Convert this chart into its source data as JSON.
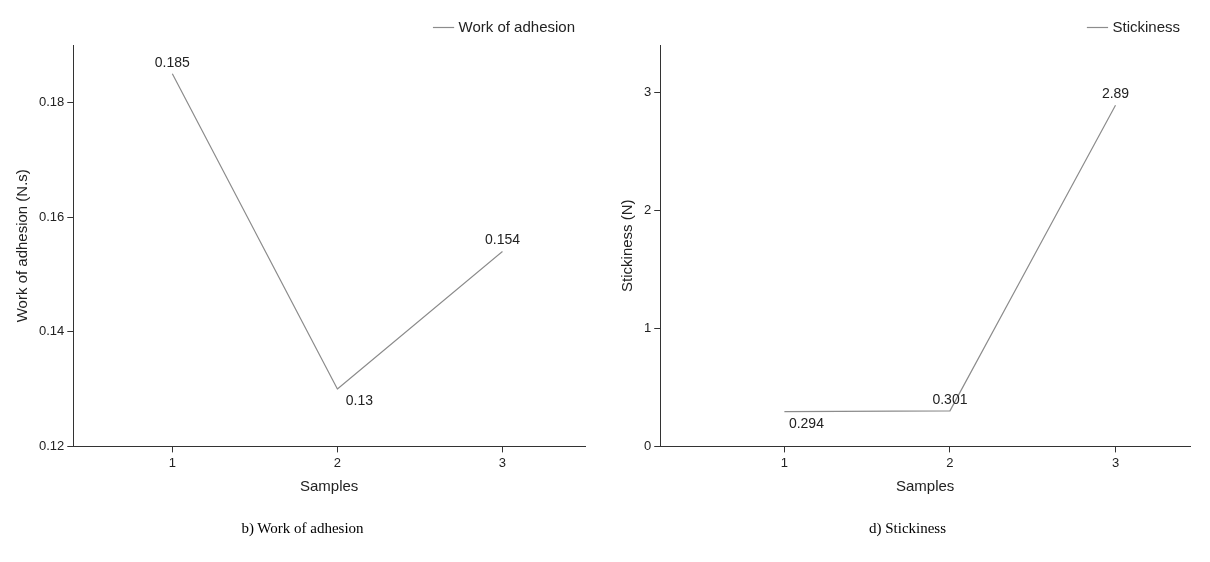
{
  "chart_data": [
    {
      "type": "line",
      "xlabel": "Samples",
      "ylabel": "Work of adhesion (N.s)",
      "x": [
        1,
        2,
        3
      ],
      "xlim": [
        0.4,
        3.5
      ],
      "xticks": [
        1,
        2,
        3
      ],
      "ylim": [
        0.12,
        0.19
      ],
      "yticks": [
        0.12,
        0.14,
        0.16,
        0.18
      ],
      "series": [
        {
          "name": "Work of adhesion",
          "color": "#8c8c8c",
          "values": [
            0.185,
            0.13,
            0.154
          ]
        }
      ],
      "data_labels": true,
      "legend": "top right",
      "grid": false,
      "marker": "none",
      "line_style": "solid",
      "annotations": [
        "b) Work of adhesion"
      ]
    },
    {
      "type": "line",
      "xlabel": "Samples",
      "ylabel": "Stickiness (N)",
      "x": [
        1,
        2,
        3
      ],
      "xlim": [
        0.25,
        3.45
      ],
      "xticks": [
        1,
        2,
        3
      ],
      "ylim": [
        0,
        3.4
      ],
      "yticks": [
        0,
        1,
        2,
        3
      ],
      "series": [
        {
          "name": "Stickiness",
          "color": "#8c8c8c",
          "values": [
            0.294,
            0.301,
            2.89
          ]
        }
      ],
      "data_labels": true,
      "legend": "top right",
      "grid": false,
      "marker": "none",
      "line_style": "solid",
      "annotations": [
        "d) Stickiness"
      ]
    }
  ]
}
